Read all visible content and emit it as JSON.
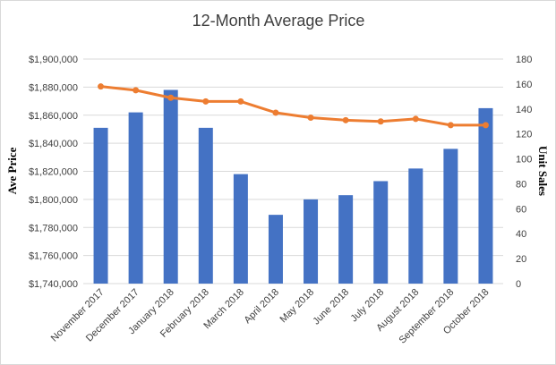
{
  "chart_data": {
    "type": "bar",
    "title": "12-Month Average Price",
    "xlabel": "",
    "ylabel": "Ave Price",
    "y2label": "Unit Sales",
    "categories": [
      "November 2017",
      "December 2017",
      "January 2018",
      "February 2018",
      "March 2018",
      "April 2018",
      "May 2018",
      "June 2018",
      "July 2018",
      "August 2018",
      "September 2018",
      "October 2018"
    ],
    "series": [
      {
        "type": "bar",
        "axis": "left",
        "color": "#4472c4",
        "values": [
          1851000,
          1862000,
          1878000,
          1851000,
          1818000,
          1789000,
          1800000,
          1803000,
          1813000,
          1822000,
          1836000,
          1865000
        ]
      },
      {
        "type": "line",
        "axis": "right",
        "color": "#ed7d31",
        "values": [
          158,
          155,
          149,
          146,
          146,
          137,
          133,
          131,
          130,
          132,
          127,
          127
        ]
      }
    ],
    "ylim": [
      1740000,
      1900000
    ],
    "y2lim": [
      0,
      180
    ],
    "y_ticks": [
      "$1,740,000",
      "$1,760,000",
      "$1,780,000",
      "$1,800,000",
      "$1,820,000",
      "$1,840,000",
      "$1,860,000",
      "$1,880,000",
      "$1,900,000"
    ],
    "y2_ticks": [
      "0",
      "20",
      "40",
      "60",
      "80",
      "100",
      "120",
      "140",
      "160",
      "180"
    ],
    "grid": true,
    "legend": "none"
  }
}
